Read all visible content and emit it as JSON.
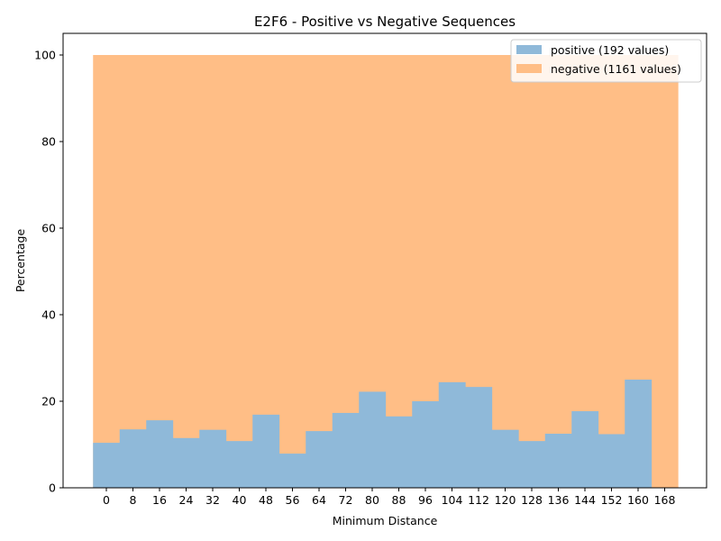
{
  "chart_data": {
    "type": "bar",
    "title": "E2F6 - Positive vs Negative Sequences",
    "xlabel": "Minimum Distance",
    "ylabel": "Percentage",
    "ylim": [
      0,
      105
    ],
    "yticks": [
      0,
      20,
      40,
      60,
      80,
      100
    ],
    "categories": [
      "0",
      "8",
      "16",
      "24",
      "32",
      "40",
      "48",
      "56",
      "64",
      "72",
      "80",
      "88",
      "96",
      "104",
      "112",
      "120",
      "128",
      "136",
      "144",
      "152",
      "160",
      "168"
    ],
    "series": [
      {
        "name": "positive (192 values)",
        "color": "#8fb9d9",
        "values": [
          10.4,
          13.5,
          15.6,
          11.5,
          13.4,
          10.8,
          16.9,
          7.9,
          13.1,
          17.3,
          22.2,
          16.5,
          20.0,
          24.4,
          23.3,
          13.4,
          10.8,
          12.5,
          17.7,
          12.4,
          25.0,
          0
        ]
      },
      {
        "name": "negative (1161 values)",
        "color": "#ffbe86",
        "values": [
          100,
          100,
          100,
          100,
          100,
          100,
          100,
          100,
          100,
          100,
          100,
          100,
          100,
          100,
          100,
          100,
          100,
          100,
          100,
          100,
          100,
          100
        ]
      }
    ],
    "legend_position": "upper-right",
    "grid": false
  }
}
